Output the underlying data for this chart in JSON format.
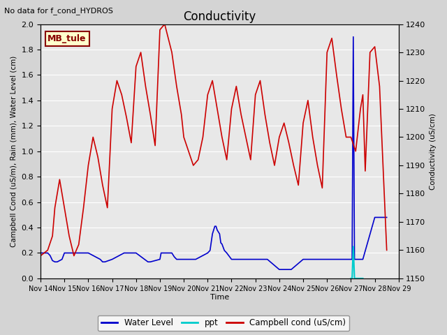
{
  "title": "Conductivity",
  "top_left_text": "No data for f_cond_HYDROS",
  "legend_label_text": "MB_tule",
  "ylabel_left": "Campbell Cond (uS/m), Rain (mm), Water Level (cm)",
  "ylabel_right": "Conductivity (uS/cm)",
  "xlabel": "Time",
  "ylim_left": [
    0.0,
    2.0
  ],
  "ylim_right": [
    1150,
    1240
  ],
  "background_color": "#d4d4d4",
  "plot_bg_color": "#e8e8e8",
  "water_level_color": "#0000cc",
  "ppt_color": "#00cccc",
  "campbell_color": "#cc0000",
  "xlim": [
    0,
    15
  ],
  "x_ticks": [
    0,
    1,
    2,
    3,
    4,
    5,
    6,
    7,
    8,
    9,
    10,
    11,
    12,
    13,
    14,
    15
  ],
  "x_tick_labels": [
    "Nov 14",
    "Nov 15",
    "Nov 16",
    "Nov 17",
    "Nov 18",
    "Nov 19",
    "Nov 20",
    "Nov 21",
    "Nov 22",
    "Nov 23",
    "Nov 24",
    "Nov 25",
    "Nov 26",
    "Nov 27",
    "Nov 28",
    "Nov 29"
  ],
  "water_level_x": [
    0.0,
    0.05,
    0.1,
    0.2,
    0.3,
    0.4,
    0.5,
    0.6,
    0.7,
    0.9,
    1.0,
    1.5,
    2.0,
    2.5,
    2.6,
    2.7,
    3.0,
    3.5,
    3.6,
    4.0,
    4.5,
    4.6,
    5.0,
    5.05,
    5.1,
    5.5,
    5.6,
    5.7,
    6.0,
    6.5,
    7.0,
    7.1,
    7.2,
    7.3,
    7.35,
    7.4,
    7.5,
    7.55,
    7.6,
    7.7,
    7.8,
    8.0,
    8.2,
    8.4,
    8.6,
    8.8,
    9.0,
    9.5,
    10.0,
    10.5,
    11.0,
    11.5,
    12.0,
    12.5,
    13.0,
    13.05,
    13.1,
    13.15,
    13.4,
    13.5,
    14.0,
    14.5
  ],
  "water_level_y": [
    0.2,
    0.2,
    0.2,
    0.2,
    0.2,
    0.18,
    0.14,
    0.13,
    0.13,
    0.15,
    0.2,
    0.2,
    0.2,
    0.15,
    0.13,
    0.13,
    0.15,
    0.2,
    0.2,
    0.2,
    0.13,
    0.13,
    0.15,
    0.2,
    0.2,
    0.2,
    0.17,
    0.15,
    0.15,
    0.15,
    0.2,
    0.22,
    0.35,
    0.41,
    0.41,
    0.38,
    0.35,
    0.28,
    0.27,
    0.22,
    0.2,
    0.15,
    0.15,
    0.15,
    0.15,
    0.15,
    0.15,
    0.15,
    0.07,
    0.07,
    0.15,
    0.15,
    0.15,
    0.15,
    0.15,
    0.15,
    1.9,
    0.15,
    0.15,
    0.15,
    0.48,
    0.48
  ],
  "ppt_x": [
    13.0,
    13.05,
    13.1,
    13.15,
    13.5
  ],
  "ppt_y": [
    0.0,
    0.0,
    0.25,
    0.0,
    0.0
  ],
  "campbell_x": [
    0.0,
    0.3,
    0.5,
    0.6,
    0.8,
    1.0,
    1.2,
    1.4,
    1.6,
    1.8,
    2.0,
    2.2,
    2.4,
    2.6,
    2.8,
    3.0,
    3.2,
    3.4,
    3.6,
    3.8,
    4.0,
    4.2,
    4.4,
    4.6,
    4.8,
    5.0,
    5.2,
    5.5,
    5.7,
    5.9,
    6.0,
    6.2,
    6.4,
    6.6,
    6.8,
    7.0,
    7.2,
    7.4,
    7.6,
    7.8,
    8.0,
    8.2,
    8.4,
    8.6,
    8.8,
    9.0,
    9.2,
    9.4,
    9.6,
    9.8,
    10.0,
    10.2,
    10.4,
    10.6,
    10.8,
    11.0,
    11.2,
    11.4,
    11.6,
    11.8,
    12.0,
    12.2,
    12.4,
    12.6,
    12.8,
    13.0,
    13.2,
    13.4,
    13.5,
    13.6,
    13.8,
    14.0,
    14.2,
    14.5
  ],
  "campbell_y": [
    1158,
    1160,
    1165,
    1175,
    1185,
    1175,
    1165,
    1158,
    1162,
    1175,
    1190,
    1200,
    1193,
    1183,
    1175,
    1210,
    1220,
    1215,
    1207,
    1198,
    1225,
    1230,
    1218,
    1208,
    1197,
    1238,
    1240,
    1230,
    1218,
    1208,
    1200,
    1195,
    1190,
    1192,
    1200,
    1215,
    1220,
    1210,
    1200,
    1192,
    1210,
    1218,
    1208,
    1200,
    1192,
    1215,
    1220,
    1208,
    1198,
    1190,
    1200,
    1205,
    1198,
    1190,
    1183,
    1205,
    1213,
    1200,
    1190,
    1182,
    1230,
    1235,
    1222,
    1210,
    1200,
    1200,
    1195,
    1210,
    1215,
    1188,
    1230,
    1232,
    1218,
    1160
  ]
}
